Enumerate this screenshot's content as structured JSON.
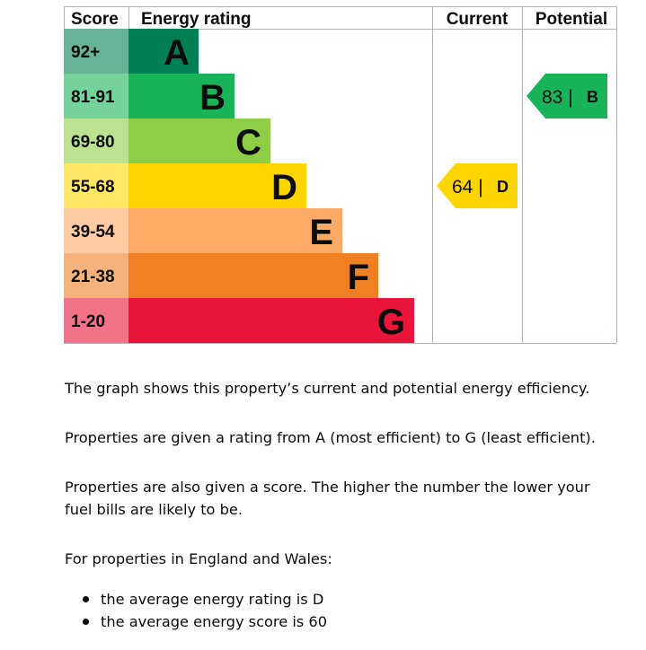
{
  "chart_data": {
    "type": "table",
    "headers": {
      "score": "Score",
      "rating": "Energy rating",
      "current": "Current",
      "potential": "Potential"
    },
    "bands": [
      {
        "letter": "A",
        "range": "92+",
        "color": "#008054"
      },
      {
        "letter": "B",
        "range": "81-91",
        "color": "#19b459"
      },
      {
        "letter": "C",
        "range": "69-80",
        "color": "#8dce46"
      },
      {
        "letter": "D",
        "range": "55-68",
        "color": "#ffd500"
      },
      {
        "letter": "E",
        "range": "39-54",
        "color": "#fcaa65"
      },
      {
        "letter": "F",
        "range": "21-38",
        "color": "#ef8023"
      },
      {
        "letter": "G",
        "range": "1-20",
        "color": "#e9153b"
      }
    ],
    "current": {
      "score": 64,
      "band": "D",
      "label": "64 |",
      "color": "#ffd500"
    },
    "potential": {
      "score": 83,
      "band": "B",
      "label": "83 |",
      "color": "#19b459"
    }
  },
  "text": {
    "p1": "The graph shows this property’s current and potential energy efficiency.",
    "p2": "Properties are given a rating from A (most efficient) to G (least efficient).",
    "p3": "Properties are also given a score. The higher the number the lower your fuel bills are likely to be.",
    "p4": "For properties in England and Wales:",
    "list": [
      "the average energy rating is D",
      "the average energy score is 60"
    ]
  }
}
